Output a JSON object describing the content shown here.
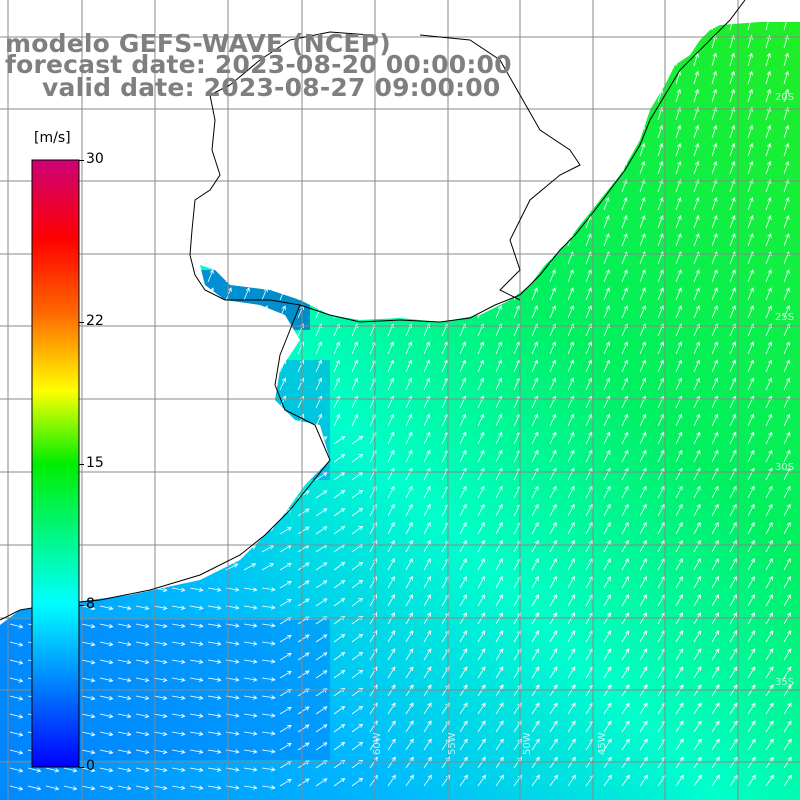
{
  "title": {
    "line1": "modelo GEFS-WAVE (NCEP)",
    "line2": "forecast date: 2023-08-20 00:00:00",
    "line3": "valid date: 2023-08-27 09:00:00"
  },
  "colorbar": {
    "unit": "[m/s]",
    "ticks": [
      {
        "label": "30",
        "value": 30
      },
      {
        "label": "22",
        "value": 22
      },
      {
        "label": "15",
        "value": 15
      },
      {
        "label": "8",
        "value": 8
      },
      {
        "label": "0",
        "value": 0
      }
    ],
    "range": [
      0,
      30
    ],
    "colors": [
      "#0000ff",
      "#00ccff",
      "#00ffdd",
      "#00ff00",
      "#ffff00",
      "#ff6600",
      "#ff0000",
      "#cc0066"
    ]
  },
  "map": {
    "land_color": "#ffffff",
    "coastline_color": "#000000",
    "grid_color": "#888888",
    "arrow_color": "#ffffff",
    "field": "wind speed (m/s) with direction arrows",
    "lon_labels": [
      "60W",
      "55W",
      "50W",
      "45W"
    ],
    "lat_labels": [
      "20S",
      "25S",
      "30S",
      "35S"
    ]
  }
}
